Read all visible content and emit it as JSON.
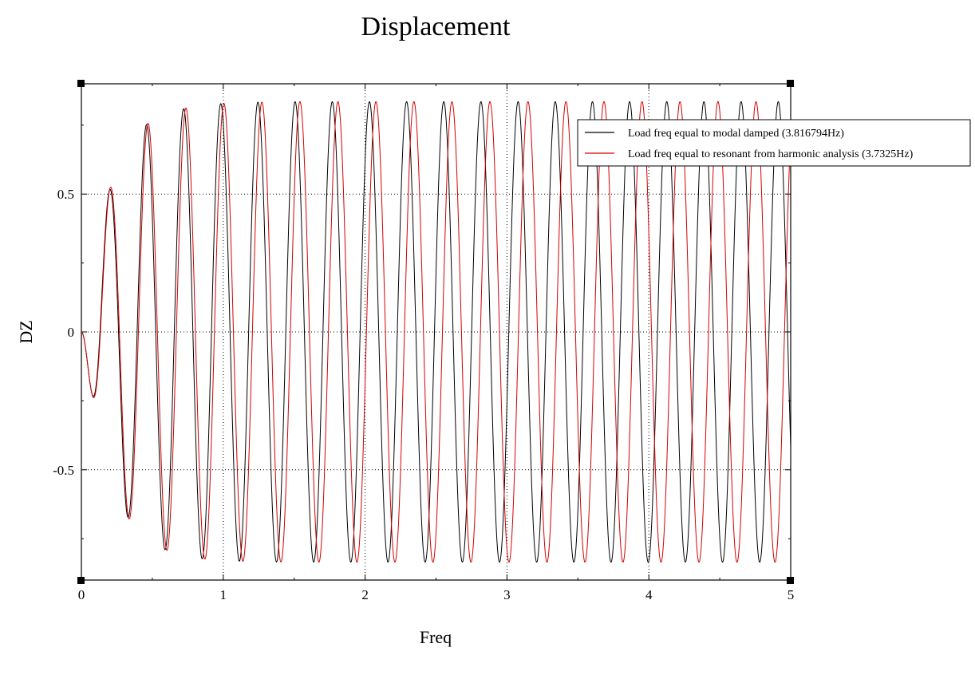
{
  "chart_data": {
    "type": "line",
    "title": "Displacement",
    "xlabel": "Freq",
    "ylabel": "DZ",
    "xlim": [
      0,
      5
    ],
    "ylim": [
      -0.9,
      0.9
    ],
    "x_ticks": [
      {
        "value": 0,
        "label": "0"
      },
      {
        "value": 1,
        "label": "1"
      },
      {
        "value": 2,
        "label": "2"
      },
      {
        "value": 3,
        "label": "3"
      },
      {
        "value": 4,
        "label": "4"
      },
      {
        "value": 5,
        "label": "5"
      }
    ],
    "y_ticks": [
      {
        "value": 0.5,
        "label": "0.5"
      },
      {
        "value": 0,
        "label": "0"
      },
      {
        "value": -0.5,
        "label": "-0.5"
      }
    ],
    "grid": "dotted",
    "legend_position": "top-right",
    "series": [
      {
        "name": "Load freq equal to modal damped (3.816794Hz)",
        "color": "#000000",
        "frequency": 3.816794,
        "envelope": {
          "x": [
            0,
            0.13,
            0.26,
            0.39,
            0.52,
            0.66,
            0.79,
            0.92,
            1.05,
            1.2,
            1.5,
            2.0,
            5.0
          ],
          "amplitude": [
            0,
            0.4,
            0.62,
            0.72,
            0.78,
            0.8,
            0.82,
            0.826,
            0.83,
            0.833,
            0.835,
            0.835,
            0.835
          ]
        }
      },
      {
        "name": "Load freq equal to resonant from harmonic analysis (3.7325Hz)",
        "color": "#d40000",
        "frequency": 3.7325,
        "envelope": {
          "x": [
            0,
            0.13,
            0.26,
            0.39,
            0.52,
            0.66,
            0.79,
            0.92,
            1.05,
            1.2,
            1.5,
            2.0,
            5.0
          ],
          "amplitude": [
            0,
            0.4,
            0.62,
            0.72,
            0.78,
            0.8,
            0.82,
            0.826,
            0.83,
            0.833,
            0.835,
            0.835,
            0.835
          ]
        }
      }
    ]
  }
}
